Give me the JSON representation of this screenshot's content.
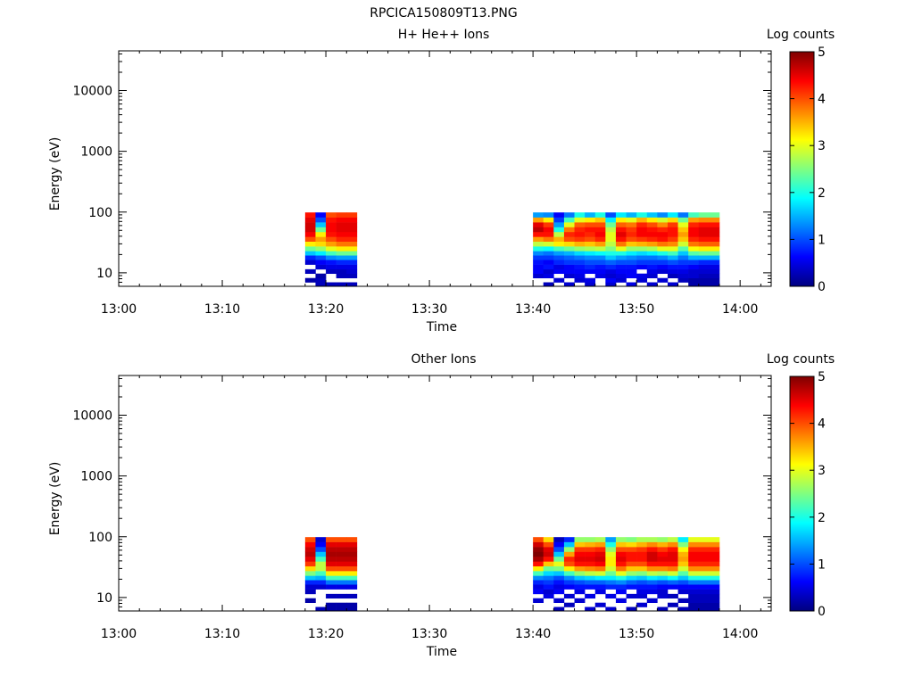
{
  "title": "RPCICA150809T13.PNG",
  "colormap": [
    "#00007f",
    "#0000ff",
    "#0080ff",
    "#00ffff",
    "#80ff80",
    "#ffff00",
    "#ff8000",
    "#ff0000",
    "#7f0000"
  ],
  "chart_data": [
    {
      "type": "heatmap",
      "title": "H+ He++ Ions",
      "xlabel": "Time",
      "ylabel": "Energy (eV)",
      "y_scale": "log",
      "ylim": [
        6,
        45000
      ],
      "xlim": [
        "13:00",
        "14:03"
      ],
      "x_ticks": [
        "13:00",
        "13:10",
        "13:20",
        "13:30",
        "13:40",
        "13:50",
        "14:00"
      ],
      "y_ticks": [
        "10",
        "100",
        "1000",
        "10000"
      ],
      "colorbar": {
        "label": "Log counts",
        "range": [
          0,
          5
        ],
        "ticks": [
          "0",
          "1",
          "2",
          "3",
          "4",
          "5"
        ]
      },
      "time_columns": [
        "13:18",
        "13:19",
        "13:20",
        "13:21",
        "13:22",
        "13:40",
        "13:41",
        "13:42",
        "13:43",
        "13:44",
        "13:45",
        "13:46",
        "13:47",
        "13:48",
        "13:49",
        "13:50",
        "13:51",
        "13:52",
        "13:53",
        "13:54",
        "13:55",
        "13:56",
        "13:57"
      ],
      "energy_bins_eV": [
        6.5,
        7.5,
        9,
        10.5,
        12.5,
        15,
        18,
        21,
        25,
        30,
        36,
        43,
        52,
        62,
        75,
        90
      ],
      "counts_log": [
        [
          null,
          0.2,
          null,
          0.3,
          null,
          0.4,
          0.8,
          1.6,
          2.4,
          3.2,
          4.0,
          4.4,
          4.6,
          4.6,
          4.5,
          4.3
        ],
        [
          0.3,
          0.3,
          0.2,
          null,
          0.4,
          0.6,
          1.0,
          1.8,
          2.6,
          3.3,
          3.6,
          3.2,
          2.4,
          1.6,
          1.0,
          0.6
        ],
        [
          0.3,
          null,
          null,
          0.3,
          0.5,
          0.7,
          1.3,
          2.2,
          3.0,
          3.6,
          4.0,
          4.3,
          4.4,
          4.4,
          4.3,
          4.0
        ],
        [
          0.3,
          null,
          0.3,
          0.3,
          0.5,
          0.8,
          1.4,
          2.4,
          3.2,
          3.8,
          4.2,
          4.4,
          4.5,
          4.5,
          4.4,
          4.1
        ],
        [
          0.3,
          null,
          0.3,
          0.4,
          0.5,
          0.8,
          1.4,
          2.4,
          3.2,
          3.8,
          4.2,
          4.4,
          4.5,
          4.5,
          4.4,
          4.1
        ],
        [
          null,
          null,
          0.4,
          0.6,
          0.6,
          0.7,
          0.9,
          1.3,
          2.0,
          2.8,
          3.6,
          4.3,
          4.7,
          4.5,
          3.6,
          1.4
        ],
        [
          0.3,
          null,
          0.5,
          0.4,
          0.7,
          0.6,
          0.9,
          1.2,
          1.9,
          2.9,
          3.8,
          4.3,
          4.4,
          4.1,
          3.2,
          1.3
        ],
        [
          null,
          0.4,
          null,
          0.6,
          0.5,
          0.8,
          1.0,
          1.4,
          2.2,
          3.2,
          3.5,
          2.8,
          2.0,
          1.4,
          0.9,
          0.6
        ],
        [
          0.4,
          null,
          0.4,
          0.6,
          0.6,
          0.9,
          1.1,
          1.5,
          2.4,
          3.3,
          4.0,
          4.2,
          3.8,
          3.0,
          2.2,
          1.2
        ],
        [
          null,
          0.4,
          0.5,
          0.6,
          0.7,
          0.9,
          1.2,
          1.7,
          2.6,
          3.5,
          4.1,
          4.3,
          4.2,
          3.9,
          3.0,
          2.0
        ],
        [
          0.4,
          0.5,
          null,
          0.6,
          0.8,
          1.0,
          1.3,
          1.8,
          2.7,
          3.4,
          4.0,
          4.2,
          4.3,
          4.0,
          3.2,
          1.5
        ],
        [
          null,
          null,
          0.5,
          0.6,
          0.7,
          1.0,
          1.3,
          1.9,
          2.8,
          3.6,
          4.2,
          4.4,
          4.3,
          4.0,
          3.4,
          2.0
        ],
        [
          0.4,
          0.6,
          0.4,
          0.5,
          0.8,
          1.1,
          1.6,
          2.0,
          2.5,
          2.8,
          3.0,
          3.0,
          2.8,
          2.4,
          1.8,
          1.0
        ],
        [
          null,
          0.4,
          0.5,
          0.6,
          0.7,
          1.0,
          1.4,
          2.0,
          3.0,
          3.8,
          4.3,
          4.5,
          4.3,
          3.9,
          3.2,
          1.8
        ],
        [
          0.5,
          null,
          0.6,
          0.6,
          0.7,
          1.0,
          1.3,
          1.8,
          2.6,
          3.4,
          4.0,
          4.2,
          4.1,
          3.8,
          3.0,
          1.5
        ],
        [
          null,
          0.4,
          0.5,
          null,
          0.6,
          0.9,
          1.2,
          1.7,
          2.6,
          3.5,
          4.1,
          4.4,
          4.4,
          4.2,
          3.5,
          2.0
        ],
        [
          0.4,
          null,
          0.4,
          0.5,
          0.7,
          0.9,
          1.2,
          1.8,
          2.7,
          3.6,
          4.2,
          4.4,
          4.3,
          4.0,
          3.2,
          1.6
        ],
        [
          null,
          0.4,
          null,
          0.4,
          0.6,
          0.9,
          1.3,
          2.0,
          3.0,
          3.8,
          4.3,
          4.4,
          4.2,
          3.7,
          2.9,
          1.3
        ],
        [
          0.4,
          null,
          0.3,
          0.5,
          0.7,
          1.0,
          1.5,
          2.2,
          3.0,
          3.7,
          4.1,
          4.3,
          4.3,
          4.1,
          3.3,
          1.8
        ],
        [
          null,
          0.3,
          0.4,
          0.5,
          0.7,
          0.9,
          1.2,
          1.6,
          2.3,
          2.9,
          3.4,
          3.6,
          3.4,
          3.0,
          2.4,
          1.2
        ],
        [
          0.2,
          0.2,
          0.4,
          0.4,
          0.6,
          0.9,
          1.5,
          2.3,
          3.1,
          3.8,
          4.2,
          4.4,
          4.4,
          4.2,
          3.6,
          2.2
        ],
        [
          0.2,
          0.2,
          0.3,
          0.4,
          0.5,
          0.8,
          1.5,
          2.4,
          3.2,
          3.9,
          4.3,
          4.5,
          4.5,
          4.3,
          3.7,
          2.4
        ],
        [
          0.2,
          0.2,
          0.3,
          0.4,
          0.5,
          0.8,
          1.5,
          2.4,
          3.2,
          3.9,
          4.3,
          4.5,
          4.5,
          4.3,
          3.7,
          2.4
        ]
      ]
    },
    {
      "type": "heatmap",
      "title": "Other Ions",
      "xlabel": "Time",
      "ylabel": "Energy (eV)",
      "y_scale": "log",
      "ylim": [
        6,
        45000
      ],
      "xlim": [
        "13:00",
        "14:03"
      ],
      "x_ticks": [
        "13:00",
        "13:10",
        "13:20",
        "13:30",
        "13:40",
        "13:50",
        "14:00"
      ],
      "y_ticks": [
        "10",
        "100",
        "1000",
        "10000"
      ],
      "colorbar": {
        "label": "Log counts",
        "range": [
          0,
          5
        ],
        "ticks": [
          "0",
          "1",
          "2",
          "3",
          "4",
          "5"
        ]
      },
      "time_columns": [
        "13:18",
        "13:19",
        "13:20",
        "13:21",
        "13:22",
        "13:40",
        "13:41",
        "13:42",
        "13:43",
        "13:44",
        "13:45",
        "13:46",
        "13:47",
        "13:48",
        "13:49",
        "13:50",
        "13:51",
        "13:52",
        "13:53",
        "13:54",
        "13:55",
        "13:56",
        "13:57"
      ],
      "energy_bins_eV": [
        6.5,
        7.5,
        9,
        10.5,
        12.5,
        15,
        18,
        21,
        25,
        30,
        36,
        43,
        52,
        62,
        75,
        90
      ],
      "counts_log": [
        [
          null,
          null,
          0.2,
          null,
          0.3,
          0.4,
          0.8,
          1.6,
          2.5,
          3.3,
          4.1,
          4.5,
          4.7,
          4.6,
          4.4,
          4.0
        ],
        [
          0.3,
          null,
          null,
          null,
          null,
          0.4,
          0.8,
          1.5,
          2.2,
          2.8,
          2.8,
          2.2,
          1.6,
          1.0,
          0.6,
          0.4
        ],
        [
          0.2,
          0.2,
          null,
          0.3,
          null,
          0.5,
          1.2,
          2.2,
          3.2,
          4.0,
          4.5,
          4.7,
          4.8,
          4.7,
          4.5,
          4.0
        ],
        [
          0.2,
          0.2,
          null,
          0.3,
          null,
          0.5,
          1.2,
          2.2,
          3.2,
          4.0,
          4.5,
          4.7,
          4.8,
          4.7,
          4.5,
          4.0
        ],
        [
          0.2,
          0.2,
          null,
          0.3,
          null,
          0.5,
          1.2,
          2.2,
          3.2,
          4.0,
          4.5,
          4.7,
          4.8,
          4.7,
          4.5,
          4.0
        ],
        [
          null,
          null,
          0.4,
          null,
          0.6,
          0.5,
          0.8,
          1.3,
          2.2,
          3.2,
          4.3,
          4.8,
          5.0,
          4.9,
          4.6,
          4.0
        ],
        [
          null,
          null,
          null,
          0.5,
          0.4,
          0.7,
          0.9,
          1.2,
          1.7,
          2.4,
          3.4,
          4.3,
          4.6,
          4.5,
          4.0,
          3.3
        ],
        [
          0.3,
          null,
          0.4,
          null,
          0.6,
          0.5,
          0.7,
          1.0,
          1.6,
          2.5,
          3.0,
          2.4,
          1.6,
          1.0,
          0.6,
          0.3
        ],
        [
          null,
          0.3,
          null,
          0.4,
          null,
          0.6,
          0.9,
          1.3,
          2.2,
          3.2,
          4.0,
          4.2,
          3.6,
          2.6,
          1.6,
          0.8
        ],
        [
          null,
          null,
          0.4,
          null,
          0.5,
          0.7,
          1.0,
          1.6,
          2.6,
          3.6,
          4.3,
          4.5,
          4.4,
          4.1,
          3.4,
          2.6
        ],
        [
          0.4,
          null,
          null,
          0.5,
          null,
          0.7,
          1.1,
          1.7,
          2.8,
          3.7,
          4.3,
          4.5,
          4.4,
          4.1,
          3.5,
          2.6
        ],
        [
          null,
          0.4,
          null,
          null,
          0.5,
          0.7,
          1.1,
          1.8,
          2.9,
          3.8,
          4.4,
          4.6,
          4.5,
          4.2,
          3.6,
          2.7
        ],
        [
          0.4,
          null,
          null,
          0.5,
          null,
          0.8,
          1.2,
          1.8,
          2.4,
          2.9,
          3.2,
          3.2,
          3.0,
          2.6,
          2.0,
          1.4
        ],
        [
          null,
          null,
          0.5,
          null,
          0.6,
          0.8,
          1.3,
          2.0,
          3.0,
          3.8,
          4.3,
          4.5,
          4.4,
          4.0,
          3.4,
          2.6
        ],
        [
          0.3,
          null,
          null,
          0.4,
          null,
          0.7,
          1.1,
          1.7,
          2.6,
          3.4,
          4.0,
          4.3,
          4.3,
          4.0,
          3.3,
          2.5
        ],
        [
          null,
          0.4,
          null,
          0.4,
          0.5,
          0.7,
          1.0,
          1.6,
          2.5,
          3.4,
          4.0,
          4.3,
          4.3,
          4.1,
          3.5,
          2.7
        ],
        [
          null,
          null,
          0.4,
          null,
          0.5,
          0.7,
          1.1,
          1.8,
          2.8,
          3.7,
          4.3,
          4.6,
          4.6,
          4.3,
          3.7,
          2.7
        ],
        [
          0.3,
          null,
          null,
          0.4,
          0.4,
          0.6,
          1.0,
          1.7,
          2.7,
          3.7,
          4.3,
          4.5,
          4.4,
          4.1,
          3.5,
          2.6
        ],
        [
          null,
          0.3,
          null,
          0.3,
          null,
          0.6,
          1.1,
          1.9,
          2.9,
          3.8,
          4.3,
          4.5,
          4.5,
          4.3,
          3.7,
          2.8
        ],
        [
          0.3,
          null,
          0.3,
          null,
          0.4,
          0.6,
          1.0,
          1.6,
          2.3,
          2.9,
          3.4,
          3.6,
          3.5,
          3.1,
          2.5,
          1.8
        ],
        [
          0.2,
          0.2,
          0.3,
          0.3,
          0.4,
          0.6,
          1.2,
          2.0,
          2.9,
          3.7,
          4.2,
          4.4,
          4.4,
          4.2,
          3.7,
          3.0
        ],
        [
          0.2,
          0.2,
          0.3,
          0.3,
          0.4,
          0.6,
          1.2,
          2.0,
          2.9,
          3.7,
          4.2,
          4.4,
          4.4,
          4.2,
          3.7,
          3.0
        ],
        [
          0.2,
          0.2,
          0.3,
          0.3,
          0.4,
          0.6,
          1.2,
          2.0,
          2.9,
          3.7,
          4.2,
          4.4,
          4.4,
          4.2,
          3.7,
          3.0
        ]
      ]
    }
  ]
}
